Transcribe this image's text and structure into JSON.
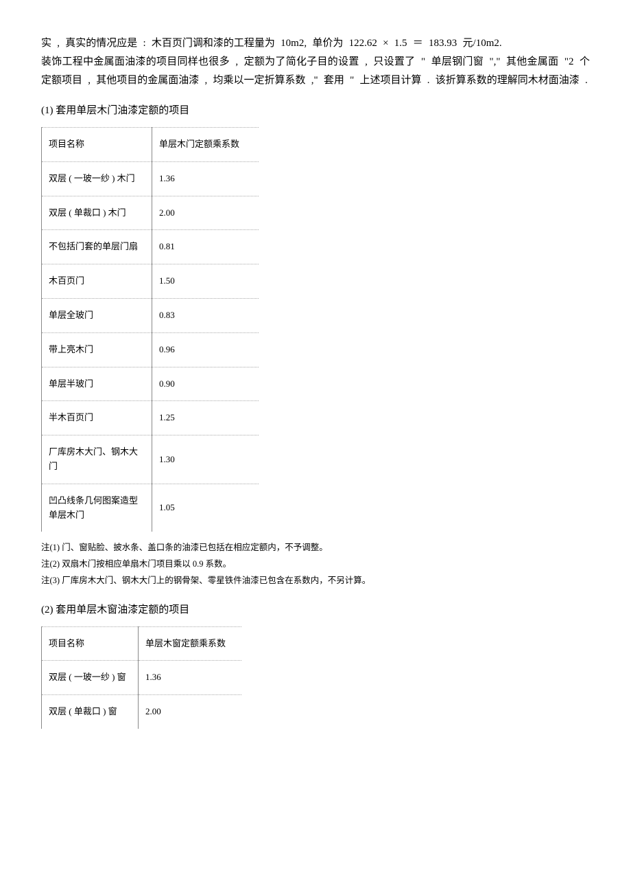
{
  "intro": {
    "line1": "实 , 真实的情况应是 : 木百页门调和漆的工程量为    10m2,    单价为 122.62 ×    1.5 ＝ 183.93    元/10m2.",
    "line2": "装饰工程中金属面油漆的项目同样也很多    , 定额为了简化子目的设置    , 只设置了 \" 单层钢门窗 \",\" 其他金属面 \"2   个定额项目 , 其他项目的金属面油漆    , 均乘以一定折算系数 ,\" 套用 \" 上述项目计算 . 该折算系数的理解同木材面油漆    ."
  },
  "section1": {
    "heading": "(1) 套用单层木门油漆定额的项目",
    "header": {
      "c1": "项目名称",
      "c2": "单层木门定额乘系数"
    },
    "rows": [
      {
        "name": "双层 ( 一玻一纱 ) 木门",
        "val": "1.36"
      },
      {
        "name": "双层 ( 单裁口 ) 木门",
        "val": "2.00"
      },
      {
        "name": "不包括门套的单层门扇",
        "val": "0.81"
      },
      {
        "name": "木百页门",
        "val": "1.50"
      },
      {
        "name": "单层全玻门",
        "val": "0.83"
      },
      {
        "name": "带上亮木门",
        "val": "0.96"
      },
      {
        "name": "单层半玻门",
        "val": "0.90"
      },
      {
        "name": "半木百页门",
        "val": "1.25"
      },
      {
        "name": "厂库房木大门、钢木大门",
        "val": "1.30"
      },
      {
        "name": "凹凸线条几何图案造型单层木门",
        "val": "1.05"
      }
    ],
    "notes": {
      "n1": "注(1) 门、窗贴脸、披水条、盖口条的油漆已包括在相应定额内，不予调整。",
      "n2": "注(2) 双扇木门按相应单扇木门项目乘以      0.9   系数。",
      "n3": "注(3) 厂库房木大门、钢木大门上的钢骨架、零星铁件油漆已包含在系数内，不另计算。"
    }
  },
  "section2": {
    "heading": "(2) 套用单层木窗油漆定额的项目",
    "header": {
      "c1": "项目名称",
      "c2": "单层木窗定额乘系数"
    },
    "rows": [
      {
        "name": "双层 ( 一玻一纱 ) 窗",
        "val": "1.36"
      },
      {
        "name": "双层 ( 单裁口 ) 窗",
        "val": "2.00"
      }
    ]
  }
}
